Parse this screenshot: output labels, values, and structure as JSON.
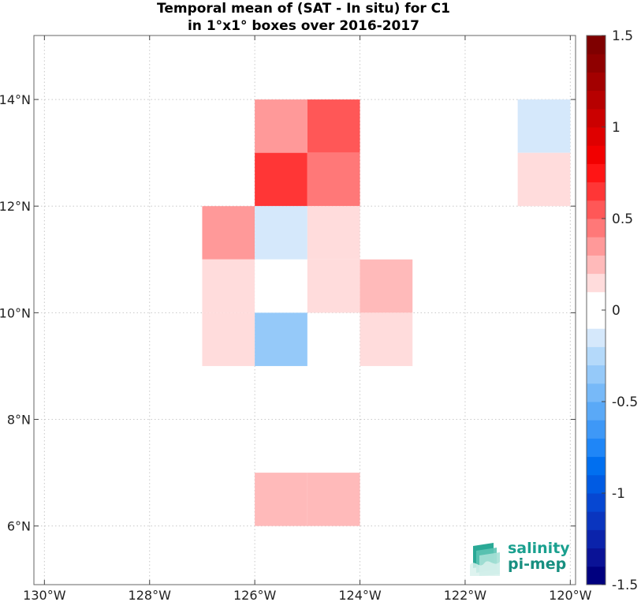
{
  "title": {
    "line1": "Temporal mean of (SAT - In situ) for C1",
    "line2": "in 1°x1° boxes over 2016-2017"
  },
  "logo": {
    "line1": "salinity",
    "line2": "pi-mep",
    "icon": "salinity-pimep-logo-icon"
  },
  "chart_data": {
    "type": "heatmap",
    "title": "Temporal mean of (SAT - In situ) for C1 in 1°x1° boxes over 2016-2017",
    "xlim": [
      -130.2,
      -119.9
    ],
    "ylim": [
      4.9,
      15.2
    ],
    "x_ticks": [
      {
        "value": -130,
        "label": "130°W"
      },
      {
        "value": -128,
        "label": "128°W"
      },
      {
        "value": -126,
        "label": "126°W"
      },
      {
        "value": -124,
        "label": "124°W"
      },
      {
        "value": -122,
        "label": "122°W"
      },
      {
        "value": -120,
        "label": "120°W"
      }
    ],
    "y_ticks": [
      {
        "value": 6,
        "label": "6°N"
      },
      {
        "value": 8,
        "label": "8°N"
      },
      {
        "value": 10,
        "label": "10°N"
      },
      {
        "value": 12,
        "label": "12°N"
      },
      {
        "value": 14,
        "label": "14°N"
      }
    ],
    "grid": true,
    "cells": [
      {
        "lon": -126,
        "lat": 13,
        "value": 0.35
      },
      {
        "lon": -125,
        "lat": 13,
        "value": 0.55
      },
      {
        "lon": -126,
        "lat": 12,
        "value": 0.6
      },
      {
        "lon": -125,
        "lat": 12,
        "value": 0.4
      },
      {
        "lon": -127,
        "lat": 11,
        "value": 0.3
      },
      {
        "lon": -126,
        "lat": 11,
        "value": -0.12
      },
      {
        "lon": -125,
        "lat": 11,
        "value": 0.12
      },
      {
        "lon": -127,
        "lat": 10,
        "value": 0.12
      },
      {
        "lon": -126,
        "lat": 10,
        "value": 0.02
      },
      {
        "lon": -125,
        "lat": 10,
        "value": 0.12
      },
      {
        "lon": -124,
        "lat": 10,
        "value": 0.28
      },
      {
        "lon": -127,
        "lat": 9,
        "value": 0.12
      },
      {
        "lon": -126,
        "lat": 9,
        "value": -0.3
      },
      {
        "lon": -124,
        "lat": 9,
        "value": 0.12
      },
      {
        "lon": -126,
        "lat": 6,
        "value": 0.28
      },
      {
        "lon": -125,
        "lat": 6,
        "value": 0.28
      },
      {
        "lon": -121,
        "lat": 13,
        "value": -0.12
      },
      {
        "lon": -121,
        "lat": 12,
        "value": 0.12
      }
    ],
    "colorbar": {
      "range": [
        -1.5,
        1.5
      ],
      "levels": 30,
      "ticks": [
        {
          "value": 1.5,
          "label": "1.5"
        },
        {
          "value": 1,
          "label": "1"
        },
        {
          "value": 0.5,
          "label": "0.5"
        },
        {
          "value": 0,
          "label": "0"
        },
        {
          "value": -0.5,
          "label": "-0.5"
        },
        {
          "value": -1,
          "label": "-1"
        },
        {
          "value": -1.5,
          "label": "-1.5"
        }
      ],
      "colors_low_to_high": [
        "#00007f",
        "#0a1296",
        "#0b23ab",
        "#0a35bf",
        "#0647d2",
        "#005be3",
        "#006ff0",
        "#1f86f7",
        "#3e98f7",
        "#5aa9f7",
        "#77b9f8",
        "#95c9f9",
        "#b4d9fa",
        "#d5e8fb",
        "#ffffff",
        "#ffffff",
        "#ffdcdc",
        "#ffbaba",
        "#ff9999",
        "#ff7878",
        "#ff5757",
        "#ff3636",
        "#ff1515",
        "#f20000",
        "#df0000",
        "#cb0000",
        "#b70000",
        "#a30000",
        "#8f0000",
        "#7f0000"
      ]
    }
  }
}
